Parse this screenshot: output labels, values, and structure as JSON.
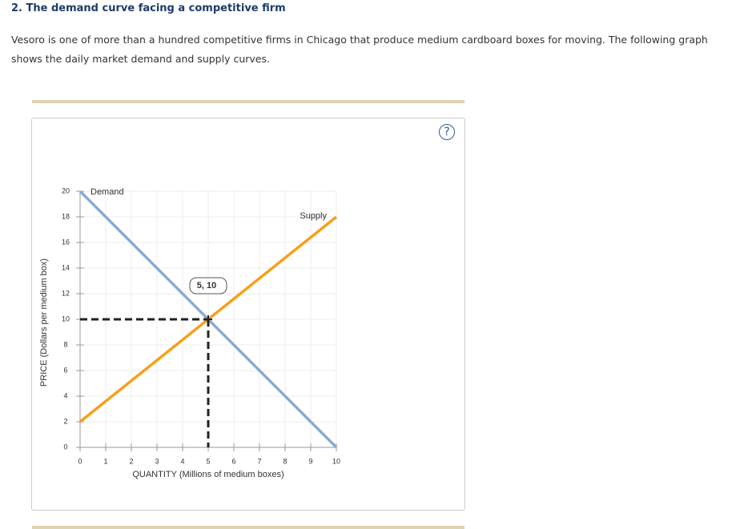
{
  "header": {
    "title": "2. The demand curve facing a competitive firm"
  },
  "paragraph": "Vesoro is one of more than a hundred competitive firms in Chicago that produce medium cardboard boxes for moving. The following graph shows the daily market demand and supply curves.",
  "help": "?",
  "chart_data": {
    "type": "line",
    "x_label": "QUANTITY (Millions of medium boxes)",
    "y_label": "PRICE (Dollars per medium box)",
    "x": [
      0,
      10
    ],
    "series": [
      {
        "name": "Demand",
        "color": "#88abd6",
        "values": [
          20,
          0
        ]
      },
      {
        "name": "Supply",
        "color": "#f5a01d",
        "values": [
          2,
          18
        ]
      }
    ],
    "equilibrium": {
      "x": 5,
      "y": 10,
      "label": "5, 10"
    },
    "xlim": [
      0,
      10
    ],
    "ylim": [
      0,
      20
    ],
    "xticks": [
      0,
      1,
      2,
      3,
      4,
      5,
      6,
      7,
      8,
      9,
      10
    ],
    "yticks": [
      0,
      2,
      4,
      6,
      8,
      10,
      12,
      14,
      16,
      18,
      20
    ],
    "grid": true
  }
}
